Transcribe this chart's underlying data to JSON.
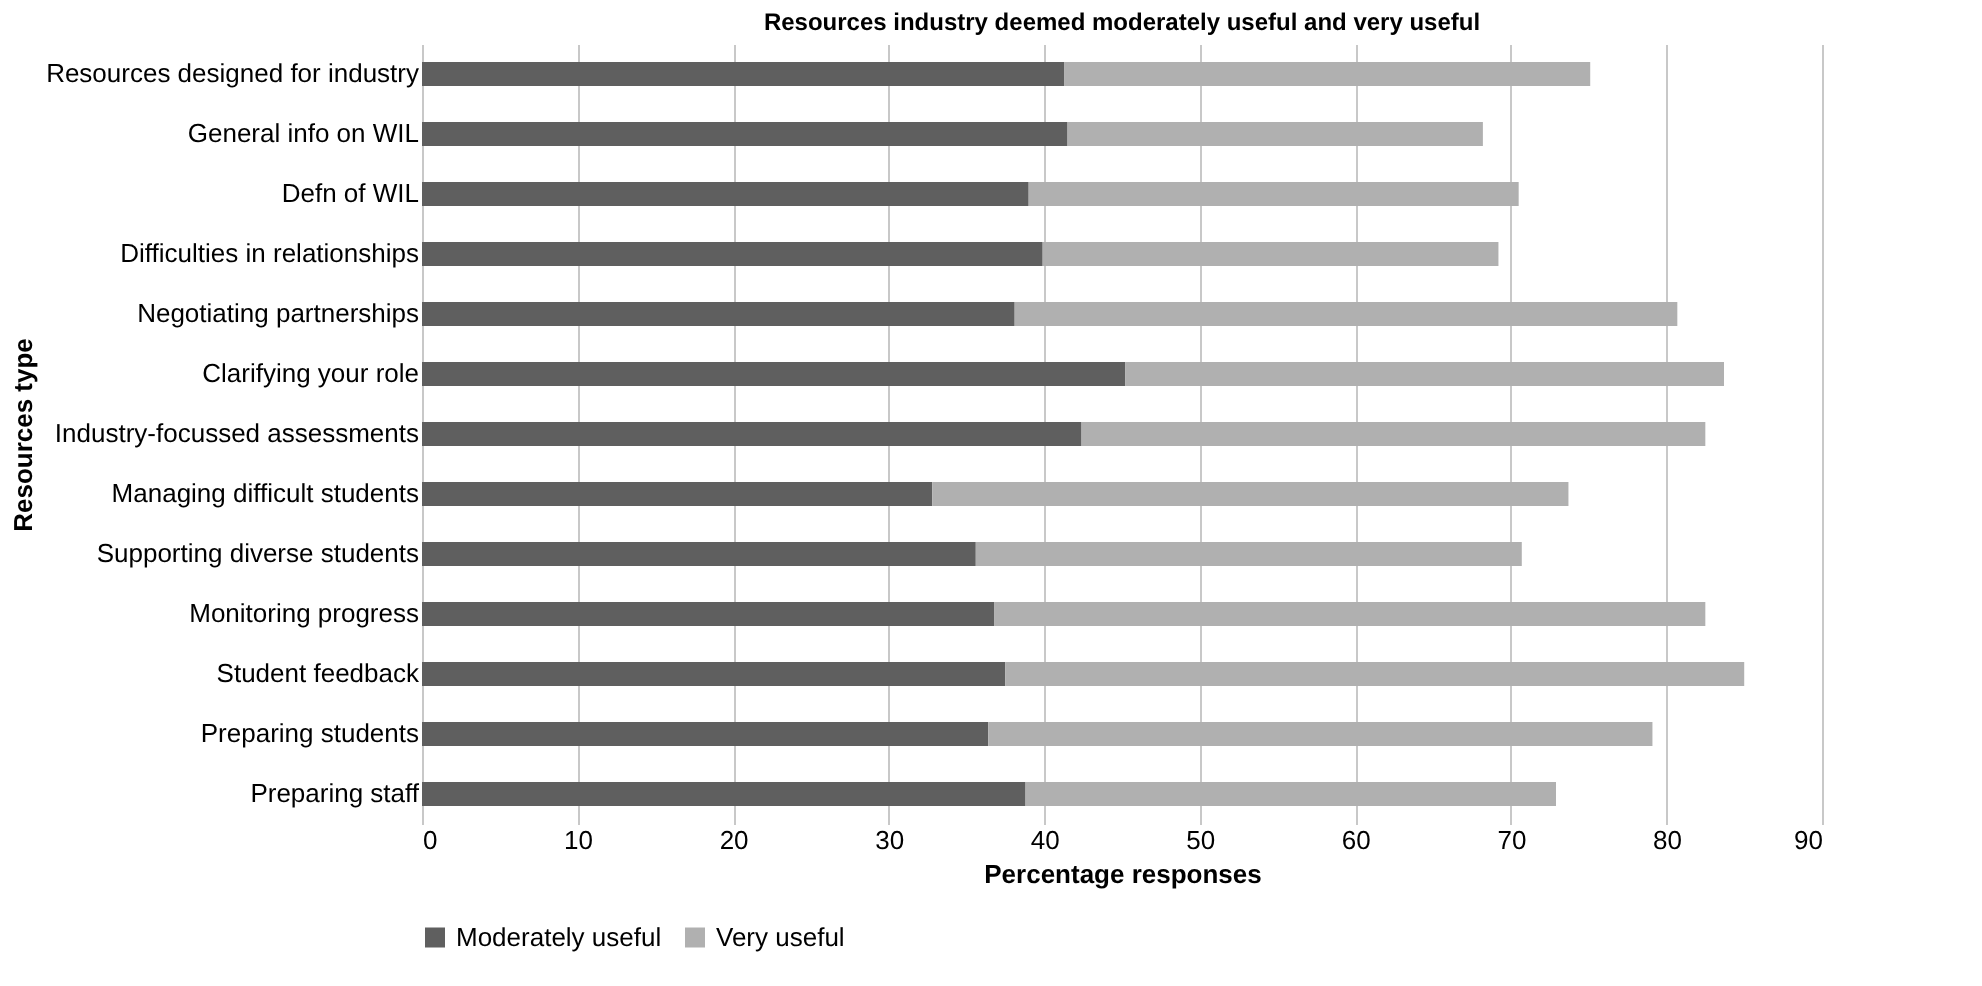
{
  "chart_data": {
    "type": "bar",
    "orientation": "horizontal",
    "stacked": true,
    "title": "Resources industry deemed moderately useful and very useful",
    "xlabel": "Percentage responses",
    "ylabel": "Resources type",
    "categories": [
      "Resources designed for industry",
      "General info on WIL",
      "Defn of WIL",
      "Difficulties in relationships",
      "Negotiating partnerships",
      "Clarifying your role",
      "Industry-focussed assessments",
      "Managing difficult students",
      "Supporting diverse students",
      "Monitoring progress",
      "Student feedback",
      "Preparing students",
      "Preparing staff"
    ],
    "series": [
      {
        "name": "Moderately useful",
        "color": "#5f5f5f",
        "values": [
          41.3,
          41.5,
          39.0,
          39.9,
          38.1,
          45.2,
          42.4,
          32.8,
          35.6,
          36.8,
          37.5,
          36.4,
          38.8
        ]
      },
      {
        "name": "Very useful",
        "color": "#b0b0b0",
        "values": [
          33.8,
          26.7,
          31.5,
          29.3,
          42.6,
          38.5,
          40.1,
          40.9,
          35.1,
          45.7,
          47.5,
          42.7,
          34.1
        ]
      }
    ],
    "xlim": [
      0,
      90
    ],
    "xticks": [
      0,
      10,
      20,
      30,
      40,
      50,
      60,
      70,
      80,
      90
    ],
    "grid": "x",
    "legend": "bottom"
  }
}
